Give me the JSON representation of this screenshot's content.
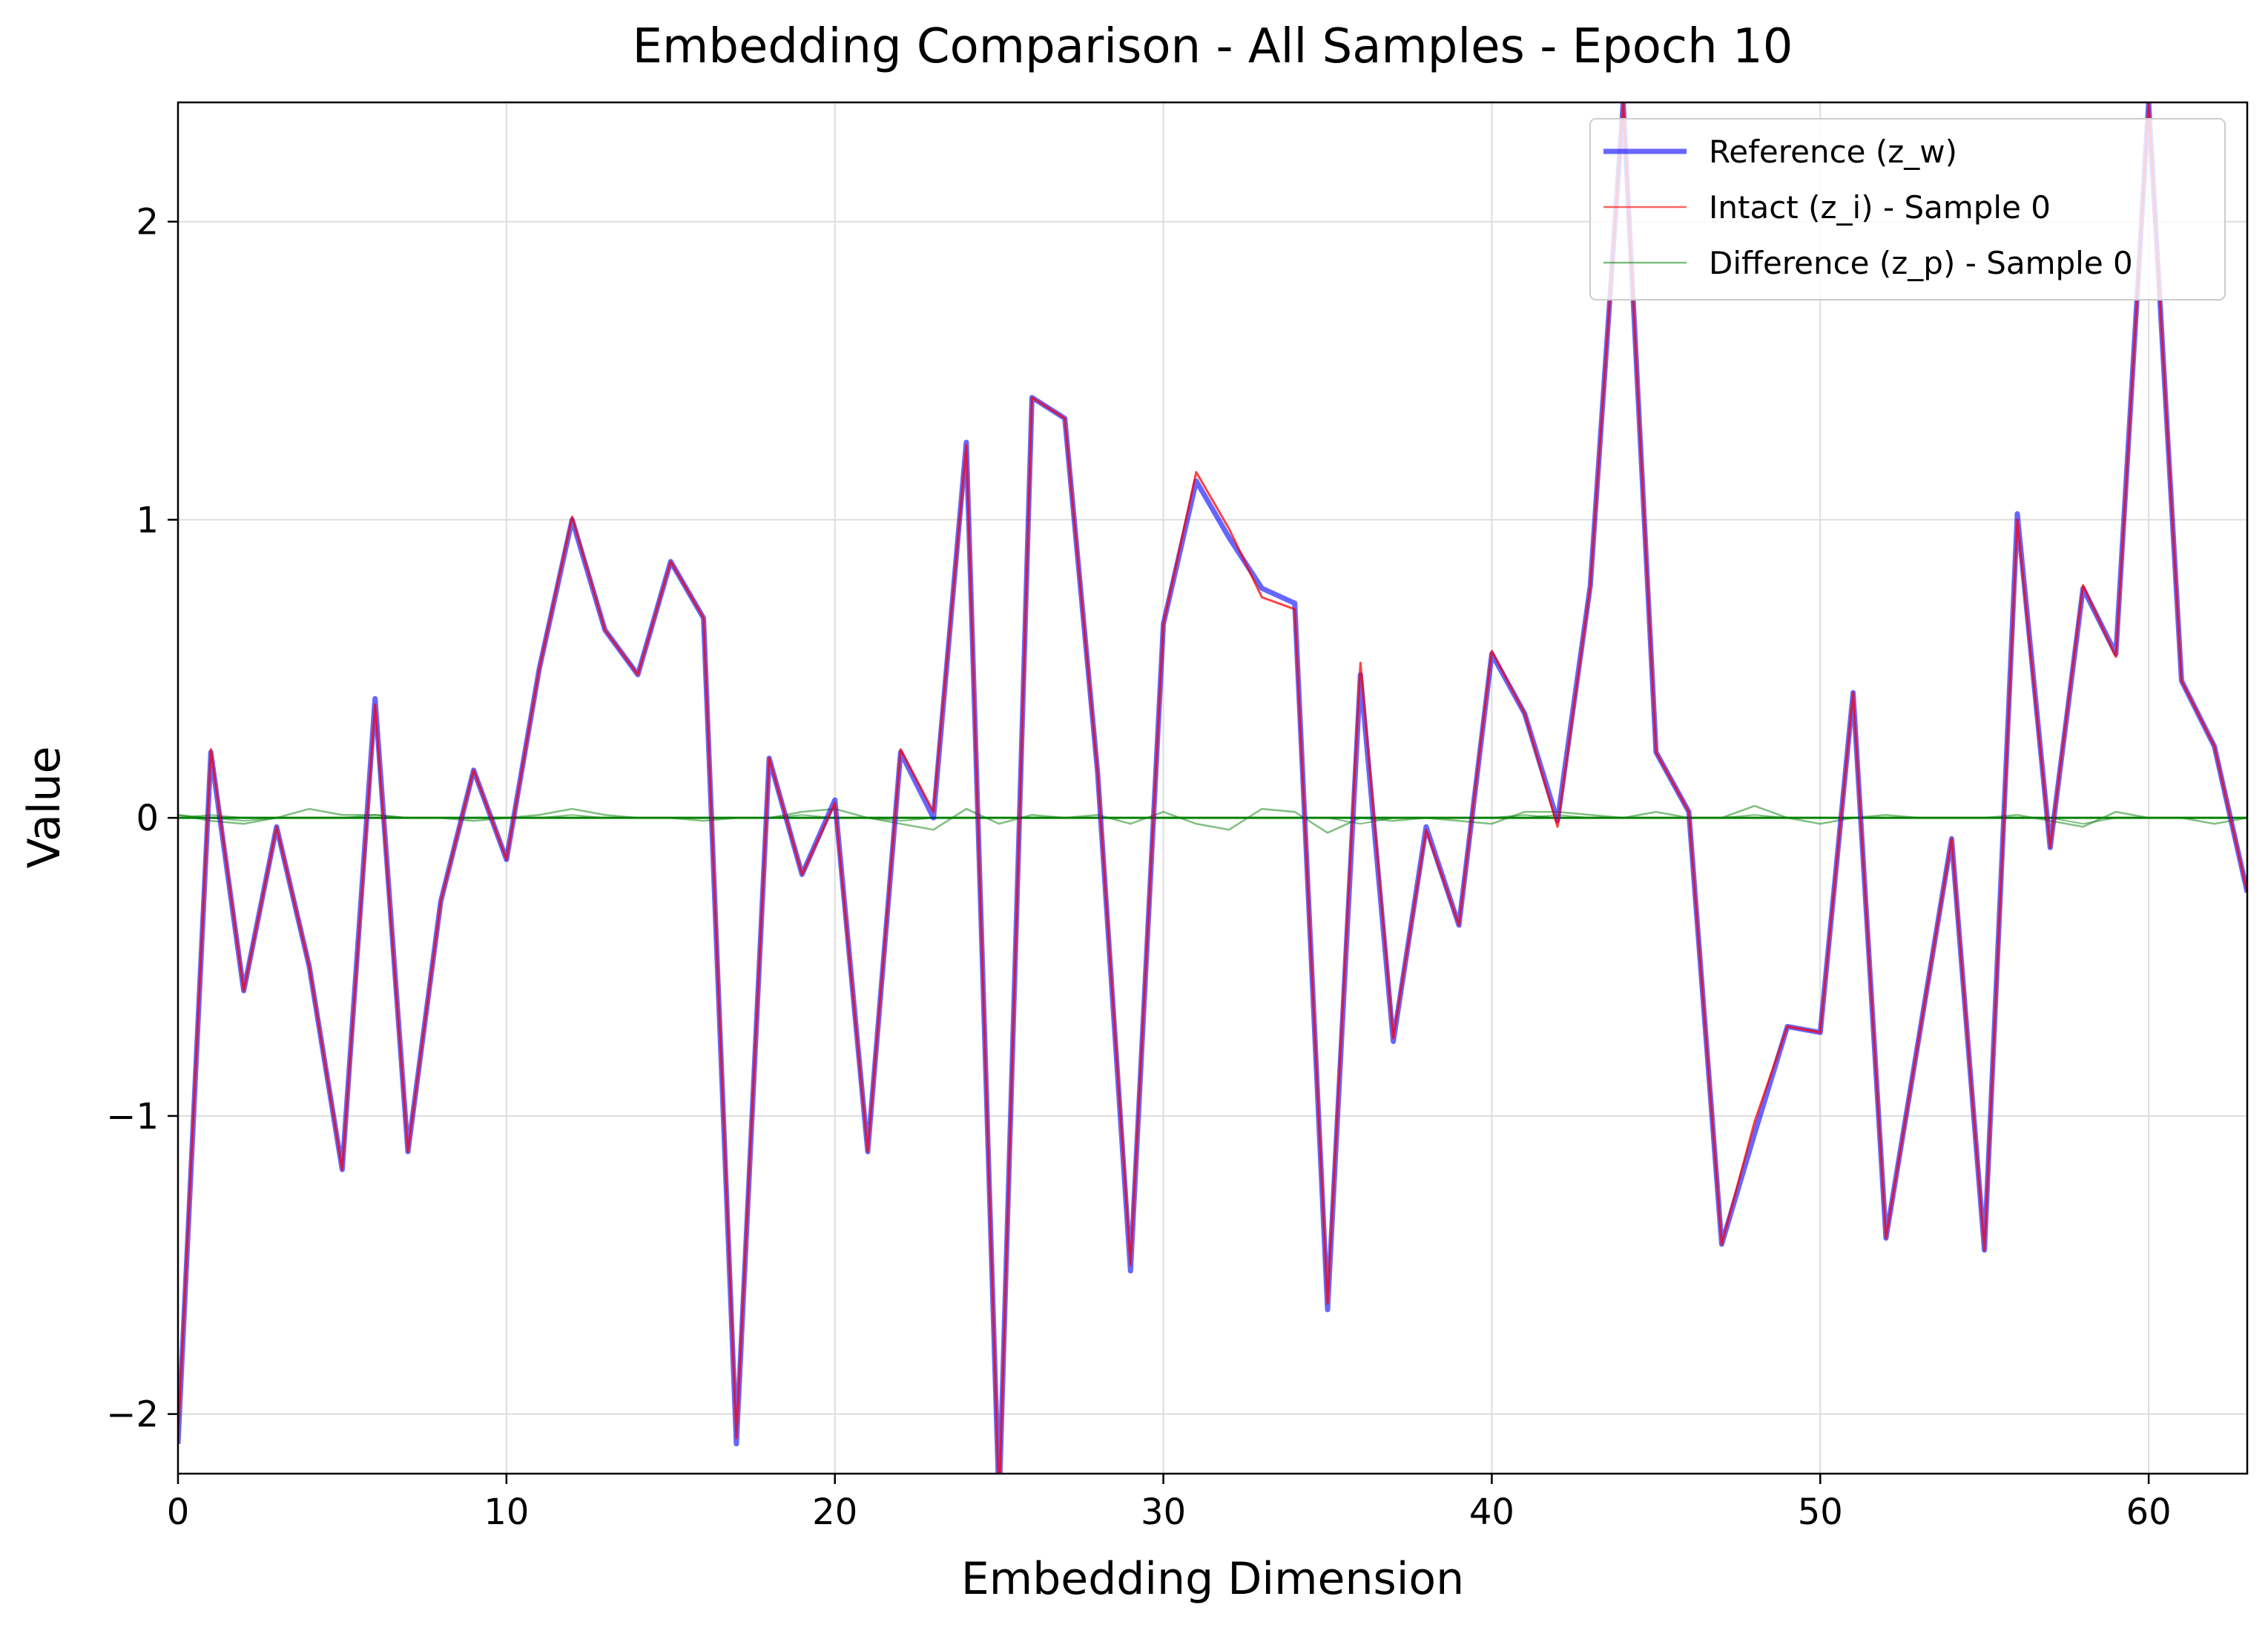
{
  "chart_data": {
    "type": "line",
    "title": "Embedding Comparison - All Samples - Epoch 10",
    "xlabel": "Embedding Dimension",
    "ylabel": "Value",
    "xlim": [
      0,
      63
    ],
    "ylim": [
      -2.2,
      2.4
    ],
    "grid": true,
    "legend_position": "top-right",
    "x_ticks": [
      0,
      10,
      20,
      30,
      40,
      50,
      60
    ],
    "x_tick_labels": [
      "0",
      "10",
      "20",
      "30",
      "40",
      "50",
      "60"
    ],
    "y_ticks": [
      -2,
      -1,
      0,
      1,
      2
    ],
    "y_tick_labels": [
      "−2",
      "−1",
      "0",
      "1",
      "2"
    ],
    "x": [
      0,
      1,
      2,
      3,
      4,
      5,
      6,
      7,
      8,
      9,
      10,
      11,
      12,
      13,
      14,
      15,
      16,
      17,
      18,
      19,
      20,
      21,
      22,
      23,
      24,
      25,
      26,
      27,
      28,
      29,
      30,
      31,
      32,
      33,
      34,
      35,
      36,
      37,
      38,
      39,
      40,
      41,
      42,
      43,
      44,
      45,
      46,
      47,
      48,
      49,
      50,
      51,
      52,
      53,
      54,
      55,
      56,
      57,
      58,
      59,
      60,
      61,
      62,
      63
    ],
    "series": [
      {
        "name": "Reference (z_w)",
        "color": "#0000ff",
        "values": [
          -2.1,
          0.22,
          -0.58,
          -0.03,
          -0.5,
          -1.18,
          0.4,
          -1.12,
          -0.28,
          0.16,
          -0.14,
          0.5,
          1.0,
          0.63,
          0.48,
          0.86,
          0.67,
          -2.1,
          0.2,
          -0.19,
          0.06,
          -1.12,
          0.22,
          0.0,
          1.26,
          -2.3,
          1.41,
          1.34,
          0.15,
          -1.52,
          0.65,
          1.13,
          0.94,
          0.77,
          0.72,
          -1.65,
          0.48,
          -0.75,
          -0.03,
          -0.36,
          0.55,
          0.35,
          -0.01,
          0.78,
          2.4,
          0.22,
          0.02,
          -1.43,
          -1.06,
          -0.7,
          -0.72,
          0.42,
          -1.41,
          -0.74,
          -0.07,
          -1.45,
          1.02,
          -0.1,
          0.77,
          0.55,
          2.4,
          0.46,
          0.24,
          -0.25
        ]
      },
      {
        "name": "Intact (z_i) - Sample 0",
        "color": "#ff0000",
        "values": [
          -2.08,
          0.23,
          -0.58,
          -0.03,
          -0.5,
          -1.18,
          0.38,
          -1.12,
          -0.28,
          0.16,
          -0.14,
          0.5,
          1.01,
          0.63,
          0.48,
          0.86,
          0.67,
          -2.08,
          0.2,
          -0.19,
          0.05,
          -1.12,
          0.23,
          0.02,
          1.25,
          -2.3,
          1.41,
          1.34,
          0.15,
          -1.5,
          0.65,
          1.16,
          0.97,
          0.74,
          0.7,
          -1.63,
          0.52,
          -0.74,
          -0.04,
          -0.36,
          0.56,
          0.35,
          -0.03,
          0.78,
          2.4,
          0.22,
          0.02,
          -1.43,
          -1.02,
          -0.7,
          -0.72,
          0.42,
          -1.41,
          -0.74,
          -0.07,
          -1.45,
          1.0,
          -0.1,
          0.78,
          0.54,
          2.4,
          0.46,
          0.24,
          -0.25
        ]
      },
      {
        "name": "Difference (z_p) - Sample 0",
        "color": "#008000",
        "values": [
          0.01,
          -0.01,
          -0.02,
          0.0,
          0.03,
          0.01,
          0.01,
          0.0,
          0.0,
          -0.01,
          0.0,
          0.01,
          0.03,
          0.01,
          0.0,
          0.0,
          -0.01,
          0.0,
          0.0,
          0.02,
          0.03,
          0.0,
          -0.02,
          -0.04,
          0.03,
          -0.02,
          0.01,
          0.0,
          0.01,
          -0.02,
          0.02,
          -0.02,
          -0.04,
          0.03,
          0.02,
          -0.05,
          0.0,
          -0.01,
          0.0,
          -0.01,
          -0.02,
          0.02,
          0.02,
          0.01,
          0.0,
          0.02,
          0.0,
          0.0,
          0.04,
          0.0,
          -0.02,
          0.0,
          0.01,
          0.0,
          0.0,
          0.0,
          0.01,
          -0.01,
          -0.03,
          0.02,
          0.0,
          0.0,
          -0.02,
          0.0
        ]
      }
    ],
    "extra_green_traces": [
      [
        0,
        0.01,
        0,
        0,
        0,
        0,
        0.01,
        0,
        0,
        0,
        0,
        0,
        0,
        0,
        0,
        0,
        0,
        0,
        0,
        0,
        0,
        0,
        0,
        0,
        0,
        0,
        0,
        0,
        0,
        0,
        0,
        0,
        0,
        0,
        0,
        0,
        0,
        0,
        0,
        0,
        0,
        0,
        0,
        0,
        0,
        0,
        0,
        0,
        0,
        0,
        0,
        0,
        0,
        0,
        0,
        0,
        0,
        0,
        0,
        0,
        0,
        0,
        0,
        0
      ],
      [
        0,
        0,
        0,
        0,
        0,
        0,
        0,
        0,
        0,
        0,
        0,
        0,
        0,
        0,
        0,
        0,
        0,
        0,
        0,
        0.01,
        0,
        0,
        -0.01,
        0,
        0,
        0,
        0,
        0,
        0,
        0,
        0,
        0,
        0,
        0,
        0,
        0,
        0,
        0,
        0,
        0,
        0,
        0.01,
        0,
        0,
        0,
        0,
        0,
        0,
        0.01,
        0,
        0,
        0,
        0,
        0,
        0,
        0,
        0,
        0,
        -0.02,
        0,
        0,
        0,
        0,
        0
      ],
      [
        0.01,
        0,
        -0.01,
        0,
        0,
        0,
        0,
        0,
        0,
        0,
        0,
        0,
        0.01,
        0,
        0,
        0,
        0,
        0,
        0,
        0,
        0,
        0,
        0,
        0,
        0,
        0,
        0,
        0,
        0,
        0,
        0,
        0,
        0,
        0,
        0,
        0,
        -0.02,
        0,
        0,
        0,
        0,
        0,
        0.01,
        0,
        0,
        0,
        0,
        0,
        0,
        0,
        0,
        0,
        0,
        0,
        0,
        0,
        0,
        0,
        0,
        0,
        0,
        0,
        0,
        0
      ]
    ]
  }
}
